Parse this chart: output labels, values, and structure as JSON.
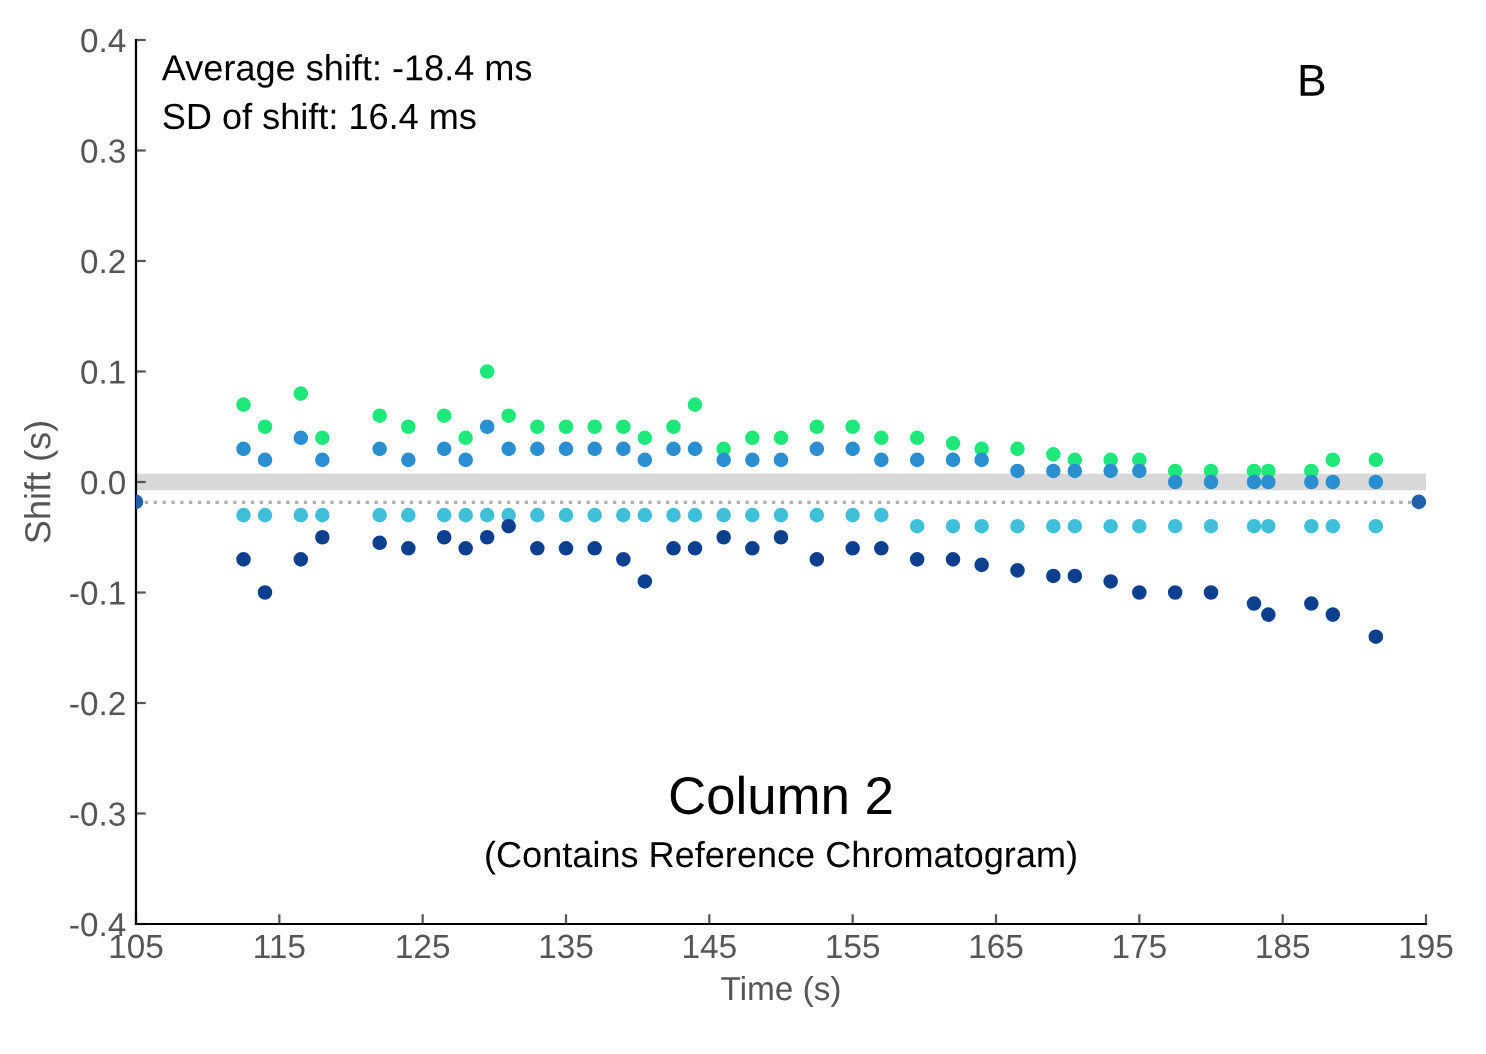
{
  "chart_data": {
    "type": "scatter",
    "xlabel": "Time (s)",
    "ylabel": "Shift (s)",
    "annotations": [
      "Average shift: -18.4 ms",
      "SD of shift: 16.4 ms",
      "B",
      "Column 2",
      "(Contains Reference Chromatogram)"
    ],
    "x": [
      112.5,
      114,
      116.5,
      118,
      122,
      124,
      126.5,
      128,
      129.5,
      131,
      133,
      135,
      137,
      139,
      140.5,
      142.5,
      144,
      146,
      148,
      150,
      152.5,
      155,
      157,
      159.5,
      162,
      164,
      166.5,
      169,
      170.5,
      173,
      175,
      177.5,
      180,
      183,
      184,
      187,
      188.5,
      191.5
    ],
    "series": [
      {
        "color": "#1ee87a",
        "values": [
          0.07,
          0.05,
          0.08,
          0.04,
          0.06,
          0.05,
          0.06,
          0.04,
          0.1,
          0.06,
          0.05,
          0.05,
          0.05,
          0.05,
          0.04,
          0.05,
          0.07,
          0.03,
          0.04,
          0.04,
          0.05,
          0.05,
          0.04,
          0.04,
          0.035,
          0.03,
          0.03,
          0.025,
          0.02,
          0.02,
          0.02,
          0.01,
          0.01,
          0.01,
          0.01,
          0.01,
          0.02,
          0.02
        ]
      },
      {
        "color": "#2a8fd0",
        "values": [
          0.03,
          0.02,
          0.04,
          0.02,
          0.03,
          0.02,
          0.03,
          0.02,
          0.05,
          0.03,
          0.03,
          0.03,
          0.03,
          0.03,
          0.02,
          0.03,
          0.03,
          0.02,
          0.02,
          0.02,
          0.03,
          0.03,
          0.02,
          0.02,
          0.02,
          0.02,
          0.01,
          0.01,
          0.01,
          0.01,
          0.01,
          0.0,
          0.0,
          0.0,
          0.0,
          0.0,
          0.0,
          0.0
        ]
      },
      {
        "color": "#3fbfd8",
        "values": [
          -0.03,
          -0.03,
          -0.03,
          -0.03,
          -0.03,
          -0.03,
          -0.03,
          -0.03,
          -0.03,
          -0.03,
          -0.03,
          -0.03,
          -0.03,
          -0.03,
          -0.03,
          -0.03,
          -0.03,
          -0.03,
          -0.03,
          -0.03,
          -0.03,
          -0.03,
          -0.03,
          -0.04,
          -0.04,
          -0.04,
          -0.04,
          -0.04,
          -0.04,
          -0.04,
          -0.04,
          -0.04,
          -0.04,
          -0.04,
          -0.04,
          -0.04,
          -0.04,
          -0.04
        ]
      },
      {
        "color": "#0d3f8f",
        "values": [
          -0.07,
          -0.1,
          -0.07,
          -0.05,
          -0.055,
          -0.06,
          -0.05,
          -0.06,
          -0.05,
          -0.04,
          -0.06,
          -0.06,
          -0.06,
          -0.07,
          -0.09,
          -0.06,
          -0.06,
          -0.05,
          -0.06,
          -0.05,
          -0.07,
          -0.06,
          -0.06,
          -0.07,
          -0.07,
          -0.075,
          -0.08,
          -0.085,
          -0.085,
          -0.09,
          -0.1,
          -0.1,
          -0.1,
          -0.11,
          -0.12,
          -0.11,
          -0.12,
          -0.14
        ]
      },
      {
        "color": "#1f5fa8",
        "x": [
          105,
          194.5
        ],
        "values": [
          -0.018,
          -0.018
        ]
      }
    ],
    "ref_lines": [
      {
        "axis": "y",
        "value": 0,
        "color": "#d8d8d8",
        "line_style": "solid"
      },
      {
        "axis": "y",
        "value": -0.0184,
        "color": "#b0b0b0",
        "line_style": "dotted"
      }
    ],
    "marker": "circle",
    "grid": false,
    "xlim": [
      105,
      195
    ],
    "xticks": [
      105,
      115,
      125,
      135,
      145,
      155,
      165,
      175,
      185,
      195
    ],
    "ylim": [
      -0.4,
      0.4
    ],
    "yticks": [
      {
        "value": -0.4,
        "label": "-0.4"
      },
      {
        "value": -0.3,
        "label": "-0.3"
      },
      {
        "value": -0.2,
        "label": "-0.2"
      },
      {
        "value": -0.1,
        "label": "-0.1"
      },
      {
        "value": 0,
        "label": "0.0"
      },
      0.1,
      0.2,
      0.3,
      0.4
    ]
  }
}
